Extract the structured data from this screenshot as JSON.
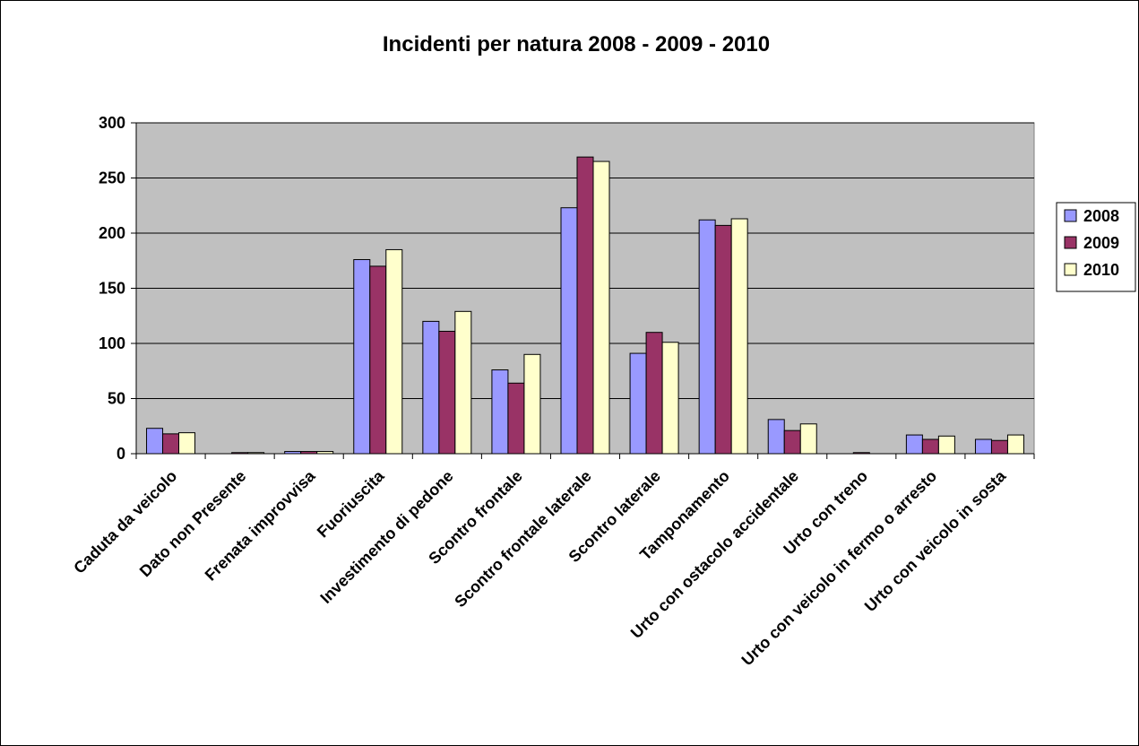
{
  "chart_data": {
    "type": "bar",
    "title": "Incidenti per natura 2008 - 2009 - 2010",
    "categories": [
      "Caduta da veicolo",
      "Dato non Presente",
      "Frenata improvvisa",
      "Fuoriuscita",
      "Investimento di pedone",
      "Scontro frontale",
      "Scontro frontale laterale",
      "Scontro laterale",
      "Tamponamento",
      "Urto con ostacolo accidentale",
      "Urto con treno",
      "Urto con veicolo in fermo o arresto",
      "Urto con veicolo in sosta"
    ],
    "series": [
      {
        "name": "2008",
        "color": "#9999FF",
        "values": [
          23,
          0,
          2,
          176,
          120,
          76,
          223,
          91,
          212,
          31,
          0,
          17,
          13
        ]
      },
      {
        "name": "2009",
        "color": "#993366",
        "values": [
          18,
          1,
          2,
          170,
          111,
          64,
          269,
          110,
          207,
          21,
          1,
          13,
          12
        ]
      },
      {
        "name": "2010",
        "color": "#FFFFCC",
        "values": [
          19,
          1,
          2,
          185,
          129,
          90,
          265,
          101,
          213,
          27,
          0,
          16,
          17
        ]
      }
    ],
    "ylim": [
      0,
      300
    ],
    "yticks": [
      0,
      50,
      100,
      150,
      200,
      250,
      300
    ],
    "grid": true,
    "plot_background": "#C0C0C0",
    "legend_position": "right"
  }
}
